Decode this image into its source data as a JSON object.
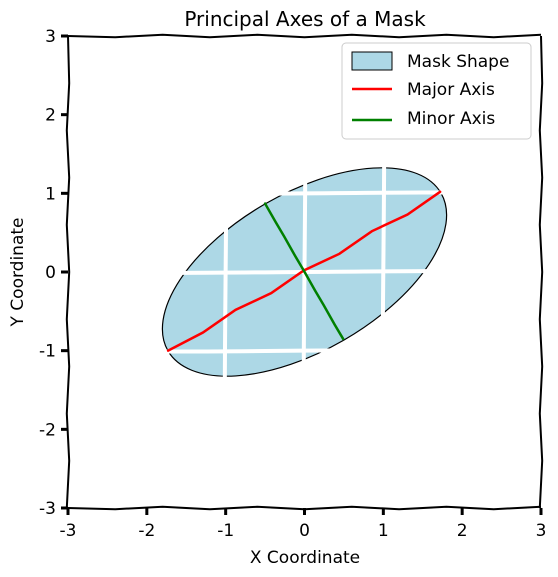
{
  "chart_data": {
    "type": "line",
    "title": "Principal Axes of a Mask",
    "xlabel": "X Coordinate",
    "ylabel": "Y Coordinate",
    "xlim": [
      -3,
      3
    ],
    "ylim": [
      -3,
      3
    ],
    "x_ticks": [
      -3,
      -2,
      -1,
      0,
      1,
      2,
      3
    ],
    "y_ticks": [
      -3,
      -2,
      -1,
      0,
      1,
      2,
      3
    ],
    "x_tick_labels": [
      "-3",
      "-2",
      "-1",
      "0",
      "1",
      "2",
      "3"
    ],
    "y_tick_labels": [
      "-3",
      "-2",
      "-1",
      "0",
      "1",
      "2",
      "3"
    ],
    "grid": true,
    "legend_position": "top-right",
    "mask": {
      "name": "Mask Shape",
      "fill": "#add8e6",
      "edge": "#000000",
      "center": [
        0,
        0
      ],
      "semi_major": 2.0,
      "semi_minor": 1.0,
      "angle_deg": 30
    },
    "series": [
      {
        "name": "Major Axis",
        "color": "#ff0000",
        "x": [
          -1.73,
          1.73
        ],
        "y": [
          -1.0,
          1.0
        ]
      },
      {
        "name": "Minor Axis",
        "color": "#008000",
        "x": [
          -0.5,
          0.5
        ],
        "y": [
          0.87,
          -0.87
        ]
      }
    ]
  }
}
